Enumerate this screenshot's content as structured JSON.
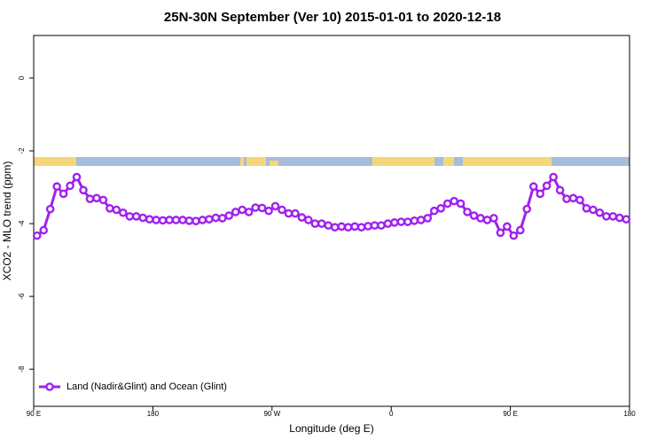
{
  "chart_data": {
    "type": "line",
    "title": "25N-30N September (Ver 10)   2015-01-01 to 2020-12-18",
    "x_label": "Longitude (deg E)",
    "y_label": "XCO2 - MLO trend (ppm)",
    "xlim": [
      90,
      540
    ],
    "ylim": [
      -9.02,
      1.17
    ],
    "xticks": [
      {
        "value": 90,
        "label": "90 E"
      },
      180,
      {
        "value": 270,
        "label": "90 W"
      },
      {
        "value": 360,
        "label": "0"
      },
      {
        "value": 450,
        "label": "90 E"
      },
      {
        "value": 540,
        "label": "180"
      }
    ],
    "yticks": [
      0,
      -2,
      -4,
      -6,
      -8
    ],
    "grid": false,
    "legend": "bottom-left",
    "x": [
      92.5,
      97.5,
      102.5,
      107.5,
      112.5,
      117.5,
      122.5,
      127.5,
      132.5,
      137.5,
      142.5,
      147.5,
      152.5,
      157.5,
      162.5,
      167.5,
      172.5,
      177.5,
      182.5,
      187.5,
      192.5,
      197.5,
      202.5,
      207.5,
      212.5,
      217.5,
      222.5,
      227.5,
      232.5,
      237.5,
      242.5,
      247.5,
      252.5,
      257.5,
      262.5,
      267.5,
      272.5,
      277.5,
      282.5,
      287.5,
      292.5,
      297.5,
      302.5,
      307.5,
      312.5,
      317.5,
      322.5,
      327.5,
      332.5,
      337.5,
      342.5,
      347.5,
      352.5,
      357.5,
      362.5,
      367.5,
      372.5,
      377.5,
      382.5,
      387.5,
      392.5,
      397.5,
      402.5,
      407.5,
      412.5,
      417.5,
      422.5,
      427.5,
      432.5,
      437.5,
      442.5,
      447.5,
      452.5,
      457.5,
      462.5,
      467.5,
      472.5,
      477.5,
      482.5,
      487.5,
      492.5,
      497.5,
      502.5,
      507.5,
      512.5,
      517.5,
      522.5,
      527.5,
      532.5,
      537.5
    ],
    "series": [
      {
        "name": "Land (Nadir&Glint) and Ocean (Glint)",
        "color": "#a020f0",
        "values": [
          -4.33,
          -4.18,
          -3.6,
          -2.98,
          -3.18,
          -2.96,
          -2.72,
          -3.08,
          -3.32,
          -3.3,
          -3.35,
          -3.58,
          -3.62,
          -3.7,
          -3.8,
          -3.8,
          -3.84,
          -3.88,
          -3.9,
          -3.91,
          -3.9,
          -3.9,
          -3.9,
          -3.92,
          -3.93,
          -3.9,
          -3.88,
          -3.84,
          -3.85,
          -3.78,
          -3.68,
          -3.62,
          -3.68,
          -3.56,
          -3.57,
          -3.65,
          -3.52,
          -3.62,
          -3.72,
          -3.72,
          -3.83,
          -3.9,
          -4.0,
          -4.0,
          -4.05,
          -4.1,
          -4.08,
          -4.1,
          -4.08,
          -4.1,
          -4.07,
          -4.05,
          -4.05,
          -4.0,
          -3.97,
          -3.95,
          -3.95,
          -3.92,
          -3.9,
          -3.85,
          -3.65,
          -3.58,
          -3.45,
          -3.38,
          -3.45,
          -3.68,
          -3.78,
          -3.85,
          -3.9,
          -3.85,
          -4.25,
          -4.08,
          -4.33,
          -4.18,
          -3.6,
          -2.98,
          -3.18,
          -2.96,
          -2.72,
          -3.08,
          -3.32,
          -3.3,
          -3.35,
          -3.58,
          -3.62,
          -3.7,
          -3.8,
          -3.8,
          -3.84,
          -3.88
        ]
      }
    ]
  }
}
